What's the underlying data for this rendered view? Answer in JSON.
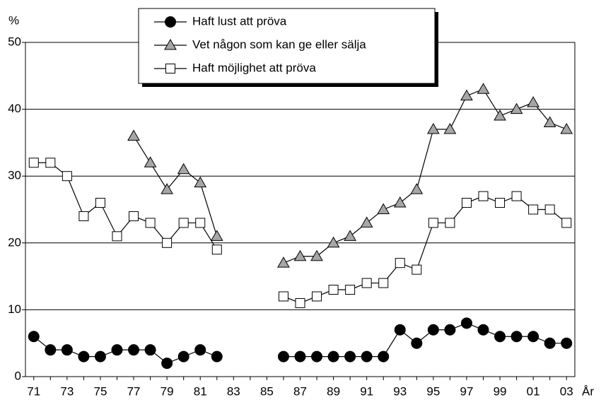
{
  "chart_data": {
    "type": "line",
    "ylabel": "%",
    "xlabel": "År",
    "categories": [
      "71",
      null,
      "73",
      null,
      "75",
      null,
      "77",
      null,
      "79",
      null,
      "81",
      null,
      "83",
      null,
      "85",
      null,
      "87",
      null,
      "89",
      null,
      "91",
      null,
      "93",
      null,
      "95",
      null,
      "97",
      null,
      "99",
      null,
      "01",
      null,
      "03"
    ],
    "series": [
      {
        "name": "Haft lust att pröva",
        "marker": "circle",
        "color": "#000000",
        "values": [
          6,
          4,
          4,
          3,
          3,
          4,
          4,
          4,
          2,
          3,
          4,
          3,
          null,
          null,
          null,
          3,
          3,
          3,
          3,
          3,
          3,
          3,
          7,
          5,
          7,
          7,
          8,
          7,
          6,
          6,
          6,
          5,
          5
        ]
      },
      {
        "name": "Vet någon som kan ge eller sälja",
        "marker": "triangle",
        "color": "#a6a6a6",
        "values": [
          null,
          null,
          null,
          null,
          null,
          null,
          36,
          32,
          28,
          31,
          29,
          21,
          null,
          null,
          null,
          17,
          18,
          18,
          20,
          21,
          23,
          25,
          26,
          28,
          37,
          37,
          42,
          43,
          39,
          40,
          41,
          38,
          37
        ]
      },
      {
        "name": "Haft möjlighet att pröva",
        "marker": "square",
        "color": "#ffffff",
        "values": [
          32,
          32,
          30,
          24,
          26,
          21,
          24,
          23,
          20,
          23,
          23,
          19,
          null,
          null,
          null,
          12,
          11,
          12,
          13,
          13,
          14,
          14,
          17,
          16,
          23,
          23,
          26,
          27,
          26,
          27,
          25,
          25,
          23
        ]
      }
    ],
    "ylim": [
      0,
      50
    ],
    "yticks": [
      0,
      10,
      20,
      30,
      40,
      50
    ],
    "grid": true
  }
}
